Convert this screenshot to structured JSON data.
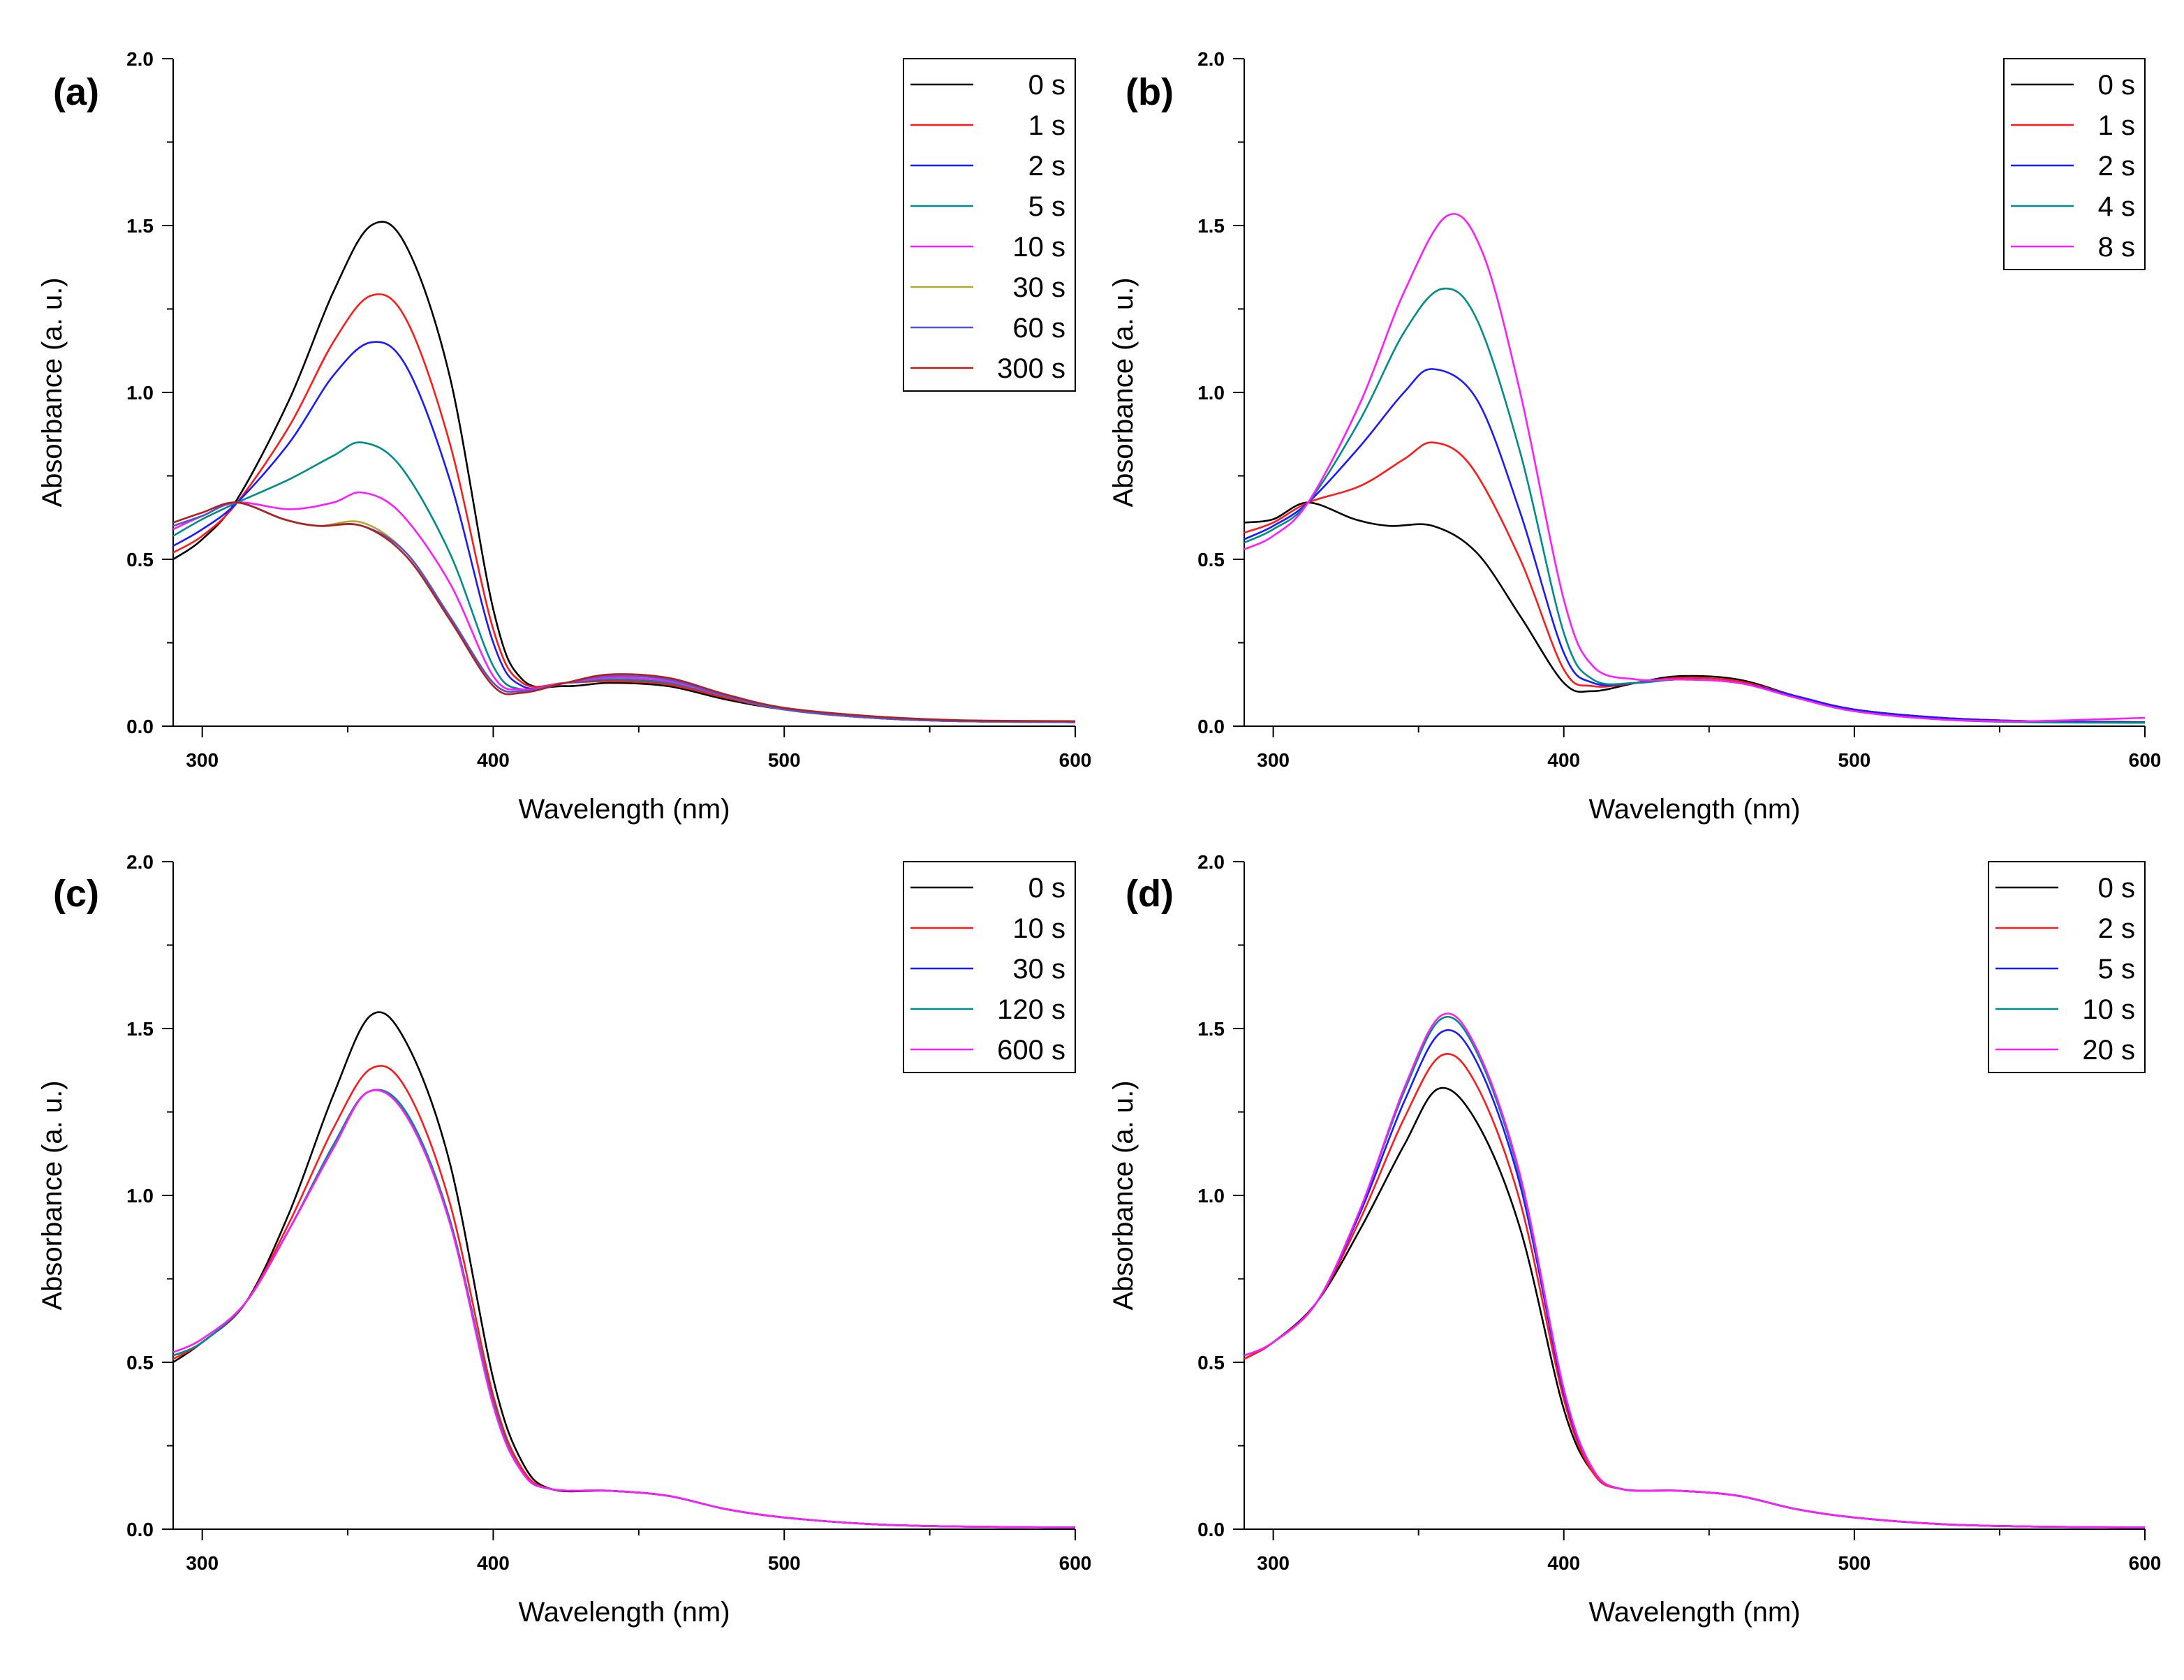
{
  "colors": {
    "black": "#000000",
    "red": "#ff1a1a",
    "blue": "#1a1aff",
    "teal": "#008b8b",
    "magenta": "#ff1aff",
    "olive": "#b0a830",
    "slate": "#5555cc",
    "darkred": "#b02020"
  },
  "chart_data": [
    {
      "panel": "(a)",
      "type": "line",
      "xlabel": "Wavelength (nm)",
      "ylabel": "Absorbance (a. u.)",
      "xlim": [
        290,
        600
      ],
      "ylim": [
        0,
        2.0
      ],
      "xticks": [
        300,
        400,
        500,
        600
      ],
      "yticks": [
        0.0,
        0.5,
        1.0,
        1.5,
        2.0
      ],
      "grid": false,
      "legend_position": "top-right",
      "series": [
        {
          "name": "0 s",
          "color": "black",
          "x": [
            290,
            300,
            312,
            330,
            345,
            358,
            370,
            385,
            400,
            410,
            425,
            440,
            460,
            480,
            500,
            530,
            560,
            600
          ],
          "y": [
            0.5,
            0.56,
            0.68,
            0.98,
            1.3,
            1.5,
            1.44,
            1.05,
            0.35,
            0.14,
            0.12,
            0.13,
            0.12,
            0.08,
            0.05,
            0.025,
            0.015,
            0.012
          ]
        },
        {
          "name": "1 s",
          "color": "red",
          "x": [
            290,
            300,
            312,
            330,
            345,
            358,
            370,
            385,
            400,
            410,
            425,
            440,
            460,
            480,
            500,
            530,
            560,
            600
          ],
          "y": [
            0.52,
            0.57,
            0.67,
            0.9,
            1.15,
            1.29,
            1.22,
            0.85,
            0.29,
            0.13,
            0.13,
            0.135,
            0.125,
            0.085,
            0.05,
            0.025,
            0.015,
            0.012
          ]
        },
        {
          "name": "2 s",
          "color": "blue",
          "x": [
            290,
            300,
            312,
            330,
            345,
            358,
            370,
            385,
            400,
            410,
            425,
            440,
            460,
            480,
            500,
            530,
            560,
            600
          ],
          "y": [
            0.54,
            0.59,
            0.67,
            0.85,
            1.05,
            1.15,
            1.08,
            0.74,
            0.25,
            0.12,
            0.13,
            0.14,
            0.13,
            0.09,
            0.05,
            0.025,
            0.015,
            0.012
          ]
        },
        {
          "name": "5 s",
          "color": "teal",
          "x": [
            290,
            300,
            312,
            330,
            345,
            355,
            368,
            385,
            400,
            410,
            425,
            440,
            460,
            480,
            500,
            530,
            560,
            600
          ],
          "y": [
            0.57,
            0.62,
            0.67,
            0.74,
            0.81,
            0.85,
            0.78,
            0.52,
            0.18,
            0.11,
            0.13,
            0.14,
            0.13,
            0.09,
            0.05,
            0.025,
            0.015,
            0.012
          ]
        },
        {
          "name": "10 s",
          "color": "magenta",
          "x": [
            290,
            300,
            312,
            330,
            345,
            355,
            368,
            385,
            400,
            410,
            425,
            440,
            460,
            480,
            500,
            530,
            560,
            600
          ],
          "y": [
            0.59,
            0.63,
            0.67,
            0.65,
            0.67,
            0.7,
            0.64,
            0.43,
            0.15,
            0.11,
            0.13,
            0.145,
            0.135,
            0.09,
            0.05,
            0.025,
            0.015,
            0.012
          ]
        },
        {
          "name": "30 s",
          "color": "olive",
          "x": [
            290,
            300,
            312,
            328,
            340,
            355,
            370,
            385,
            400,
            410,
            425,
            440,
            460,
            480,
            500,
            530,
            560,
            600
          ],
          "y": [
            0.6,
            0.63,
            0.67,
            0.62,
            0.6,
            0.61,
            0.52,
            0.33,
            0.13,
            0.105,
            0.13,
            0.15,
            0.14,
            0.09,
            0.05,
            0.025,
            0.015,
            0.012
          ]
        },
        {
          "name": "60 s",
          "color": "slate",
          "x": [
            290,
            300,
            312,
            328,
            340,
            355,
            370,
            385,
            400,
            410,
            425,
            440,
            460,
            480,
            500,
            530,
            560,
            600
          ],
          "y": [
            0.6,
            0.63,
            0.67,
            0.62,
            0.6,
            0.6,
            0.52,
            0.33,
            0.13,
            0.105,
            0.13,
            0.15,
            0.14,
            0.09,
            0.05,
            0.025,
            0.015,
            0.012
          ]
        },
        {
          "name": "300 s",
          "color": "darkred",
          "x": [
            290,
            300,
            312,
            328,
            340,
            355,
            370,
            385,
            400,
            410,
            425,
            440,
            460,
            480,
            500,
            530,
            560,
            600
          ],
          "y": [
            0.61,
            0.64,
            0.67,
            0.62,
            0.6,
            0.6,
            0.51,
            0.32,
            0.12,
            0.1,
            0.13,
            0.155,
            0.145,
            0.095,
            0.055,
            0.03,
            0.018,
            0.015
          ]
        }
      ]
    },
    {
      "panel": "(b)",
      "type": "line",
      "xlabel": "Wavelength (nm)",
      "ylabel": "Absorbance (a. u.)",
      "xlim": [
        290,
        600
      ],
      "ylim": [
        0,
        2.0
      ],
      "xticks": [
        300,
        400,
        500,
        600
      ],
      "yticks": [
        0.0,
        0.5,
        1.0,
        1.5,
        2.0
      ],
      "grid": false,
      "legend_position": "top-right",
      "series": [
        {
          "name": "0 s",
          "color": "black",
          "x": [
            290,
            300,
            312,
            328,
            340,
            355,
            370,
            385,
            400,
            410,
            425,
            440,
            460,
            480,
            500,
            530,
            560,
            600
          ],
          "y": [
            0.61,
            0.62,
            0.67,
            0.62,
            0.6,
            0.6,
            0.52,
            0.33,
            0.13,
            0.105,
            0.13,
            0.15,
            0.14,
            0.09,
            0.05,
            0.025,
            0.015,
            0.012
          ]
        },
        {
          "name": "1 s",
          "color": "red",
          "x": [
            290,
            300,
            312,
            330,
            345,
            355,
            368,
            385,
            400,
            410,
            425,
            440,
            460,
            480,
            500,
            530,
            560,
            600
          ],
          "y": [
            0.58,
            0.61,
            0.67,
            0.72,
            0.8,
            0.85,
            0.78,
            0.5,
            0.17,
            0.12,
            0.13,
            0.145,
            0.135,
            0.09,
            0.05,
            0.025,
            0.015,
            0.012
          ]
        },
        {
          "name": "2 s",
          "color": "blue",
          "x": [
            290,
            300,
            312,
            330,
            345,
            355,
            370,
            385,
            400,
            410,
            425,
            440,
            460,
            480,
            500,
            530,
            560,
            600
          ],
          "y": [
            0.56,
            0.6,
            0.67,
            0.84,
            1.0,
            1.07,
            0.98,
            0.64,
            0.22,
            0.13,
            0.13,
            0.14,
            0.13,
            0.09,
            0.05,
            0.025,
            0.015,
            0.012
          ]
        },
        {
          "name": "4 s",
          "color": "teal",
          "x": [
            290,
            300,
            312,
            330,
            345,
            358,
            370,
            385,
            400,
            410,
            425,
            440,
            460,
            480,
            500,
            530,
            560,
            600
          ],
          "y": [
            0.55,
            0.59,
            0.67,
            0.92,
            1.18,
            1.31,
            1.22,
            0.82,
            0.28,
            0.14,
            0.13,
            0.14,
            0.13,
            0.085,
            0.045,
            0.02,
            0.012,
            0.01
          ]
        },
        {
          "name": "8 s",
          "color": "magenta",
          "x": [
            290,
            300,
            312,
            330,
            345,
            360,
            372,
            385,
            400,
            410,
            425,
            440,
            460,
            480,
            500,
            530,
            560,
            600
          ],
          "y": [
            0.53,
            0.57,
            0.67,
            0.97,
            1.3,
            1.53,
            1.42,
            1.0,
            0.38,
            0.18,
            0.14,
            0.14,
            0.13,
            0.085,
            0.045,
            0.02,
            0.015,
            0.025
          ]
        }
      ]
    },
    {
      "panel": "(c)",
      "type": "line",
      "xlabel": "Wavelength (nm)",
      "ylabel": "Absorbance (a. u.)",
      "xlim": [
        290,
        600
      ],
      "ylim": [
        0,
        2.0
      ],
      "xticks": [
        300,
        400,
        500,
        600
      ],
      "yticks": [
        0.0,
        0.5,
        1.0,
        1.5,
        2.0
      ],
      "grid": false,
      "legend_position": "top-right",
      "series": [
        {
          "name": "0 s",
          "color": "black",
          "x": [
            290,
            300,
            315,
            330,
            345,
            358,
            370,
            385,
            400,
            410,
            420,
            440,
            460,
            480,
            500,
            530,
            560,
            600
          ],
          "y": [
            0.5,
            0.56,
            0.68,
            0.95,
            1.3,
            1.54,
            1.46,
            1.1,
            0.45,
            0.2,
            0.12,
            0.115,
            0.1,
            0.06,
            0.035,
            0.015,
            0.008,
            0.005
          ]
        },
        {
          "name": "10 s",
          "color": "red",
          "x": [
            290,
            300,
            315,
            330,
            345,
            358,
            370,
            385,
            400,
            410,
            420,
            440,
            460,
            480,
            500,
            530,
            560,
            600
          ],
          "y": [
            0.51,
            0.56,
            0.68,
            0.92,
            1.2,
            1.38,
            1.32,
            0.98,
            0.4,
            0.18,
            0.12,
            0.115,
            0.1,
            0.06,
            0.035,
            0.015,
            0.008,
            0.005
          ]
        },
        {
          "name": "30 s",
          "color": "blue",
          "x": [
            290,
            300,
            315,
            330,
            345,
            357,
            370,
            385,
            400,
            410,
            420,
            440,
            460,
            480,
            500,
            530,
            560,
            600
          ],
          "y": [
            0.52,
            0.56,
            0.68,
            0.9,
            1.15,
            1.31,
            1.25,
            0.93,
            0.38,
            0.17,
            0.12,
            0.115,
            0.1,
            0.06,
            0.035,
            0.015,
            0.008,
            0.005
          ]
        },
        {
          "name": "120 s",
          "color": "teal",
          "x": [
            290,
            300,
            315,
            330,
            345,
            357,
            370,
            385,
            400,
            410,
            420,
            440,
            460,
            480,
            500,
            530,
            560,
            600
          ],
          "y": [
            0.52,
            0.56,
            0.68,
            0.9,
            1.15,
            1.31,
            1.25,
            0.93,
            0.38,
            0.17,
            0.12,
            0.115,
            0.1,
            0.06,
            0.035,
            0.015,
            0.008,
            0.005
          ]
        },
        {
          "name": "600 s",
          "color": "magenta",
          "x": [
            290,
            300,
            315,
            330,
            345,
            357,
            370,
            385,
            400,
            410,
            420,
            440,
            460,
            480,
            500,
            530,
            560,
            600
          ],
          "y": [
            0.53,
            0.57,
            0.68,
            0.9,
            1.14,
            1.31,
            1.24,
            0.92,
            0.37,
            0.17,
            0.12,
            0.115,
            0.1,
            0.06,
            0.035,
            0.015,
            0.008,
            0.005
          ]
        }
      ]
    },
    {
      "panel": "(d)",
      "type": "line",
      "xlabel": "Wavelength (nm)",
      "ylabel": "Absorbance (a. u.)",
      "xlim": [
        290,
        600
      ],
      "ylim": [
        0,
        2.0
      ],
      "xticks": [
        300,
        400,
        500,
        600
      ],
      "yticks": [
        0.0,
        0.5,
        1.0,
        1.5,
        2.0
      ],
      "grid": false,
      "legend_position": "top-right",
      "series": [
        {
          "name": "0 s",
          "color": "black",
          "x": [
            290,
            300,
            315,
            330,
            345,
            357,
            370,
            385,
            400,
            410,
            420,
            440,
            460,
            480,
            500,
            530,
            560,
            600
          ],
          "y": [
            0.51,
            0.56,
            0.68,
            0.9,
            1.15,
            1.32,
            1.22,
            0.9,
            0.36,
            0.17,
            0.12,
            0.115,
            0.1,
            0.06,
            0.035,
            0.015,
            0.008,
            0.005
          ]
        },
        {
          "name": "2 s",
          "color": "red",
          "x": [
            290,
            300,
            315,
            330,
            345,
            358,
            370,
            385,
            400,
            410,
            420,
            440,
            460,
            480,
            500,
            530,
            560,
            600
          ],
          "y": [
            0.51,
            0.56,
            0.68,
            0.93,
            1.23,
            1.42,
            1.33,
            0.98,
            0.39,
            0.17,
            0.12,
            0.115,
            0.1,
            0.06,
            0.035,
            0.015,
            0.008,
            0.005
          ]
        },
        {
          "name": "5 s",
          "color": "blue",
          "x": [
            290,
            300,
            315,
            330,
            345,
            358,
            370,
            385,
            400,
            410,
            420,
            440,
            460,
            480,
            500,
            530,
            560,
            600
          ],
          "y": [
            0.52,
            0.56,
            0.68,
            0.95,
            1.28,
            1.49,
            1.4,
            1.03,
            0.41,
            0.18,
            0.12,
            0.115,
            0.1,
            0.06,
            0.035,
            0.015,
            0.008,
            0.005
          ]
        },
        {
          "name": "10 s",
          "color": "teal",
          "x": [
            290,
            300,
            315,
            330,
            345,
            358,
            370,
            385,
            400,
            410,
            420,
            440,
            460,
            480,
            500,
            530,
            560,
            600
          ],
          "y": [
            0.52,
            0.56,
            0.68,
            0.96,
            1.31,
            1.53,
            1.43,
            1.05,
            0.42,
            0.18,
            0.12,
            0.115,
            0.1,
            0.06,
            0.035,
            0.015,
            0.008,
            0.005
          ]
        },
        {
          "name": "20 s",
          "color": "magenta",
          "x": [
            290,
            300,
            315,
            330,
            345,
            358,
            370,
            385,
            400,
            410,
            420,
            440,
            460,
            480,
            500,
            530,
            560,
            600
          ],
          "y": [
            0.52,
            0.56,
            0.68,
            0.96,
            1.32,
            1.54,
            1.44,
            1.06,
            0.42,
            0.18,
            0.12,
            0.115,
            0.1,
            0.06,
            0.035,
            0.015,
            0.008,
            0.005
          ]
        }
      ]
    }
  ]
}
